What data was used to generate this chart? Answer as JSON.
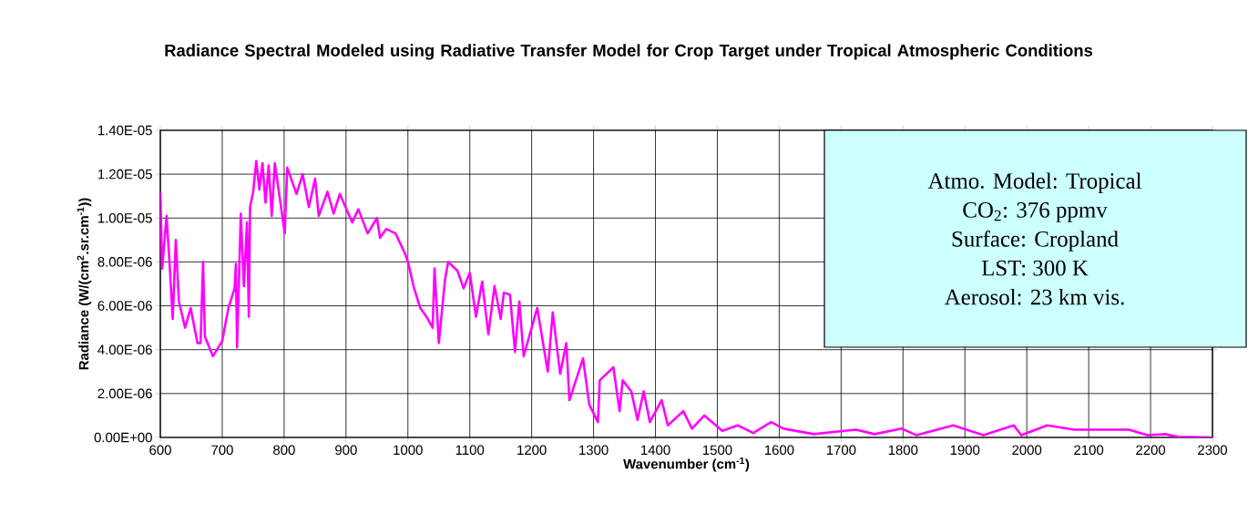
{
  "chart_data": {
    "type": "line",
    "title": "Radiance Spectral Modeled using Radiative Transfer Model for Crop Target under Tropical Atmospheric Conditions",
    "xlabel": "Wavenumber (cm$^{-1}$)",
    "ylabel": "Radiance (W/(cm$^{2}$.sr.cm$^{-1}$))",
    "annotations": [
      "Atmo. Model: Tropical",
      "CO$_{2}$: 376 ppmv",
      "Surface: Cropland",
      "LST: 300 K",
      "Aerosol: 23 km vis."
    ],
    "xlim": [
      600,
      2300
    ],
    "xticks": [
      600,
      700,
      800,
      900,
      1000,
      1100,
      1200,
      1300,
      1400,
      1500,
      1600,
      1700,
      1800,
      1900,
      2000,
      2100,
      2200,
      2300
    ],
    "ylim": [
      0,
      1.4e-05
    ],
    "yticks": [
      {
        "value": 0,
        "label": "0.00E+00"
      },
      {
        "value": 2e-06,
        "label": "2.00E-06"
      },
      {
        "value": 4e-06,
        "label": "4.00E-06"
      },
      {
        "value": 6e-06,
        "label": "6.00E-06"
      },
      {
        "value": 8e-06,
        "label": "8.00E-06"
      },
      {
        "value": 1e-05,
        "label": "1.00E-05"
      },
      {
        "value": 1.2e-05,
        "label": "1.20E-05"
      },
      {
        "value": 1.4e-05,
        "label": "1.40E-05"
      }
    ],
    "grid": true,
    "marker": "none",
    "line_style": "solid",
    "series": [
      {
        "color": "#ff00ff",
        "x": [
          600,
          603,
          610,
          615,
          620,
          625,
          630,
          640,
          649,
          660,
          665,
          669,
          672,
          685,
          700,
          710,
          720,
          722,
          724,
          730,
          735,
          740,
          743,
          745,
          750,
          755,
          760,
          765,
          770,
          775,
          780,
          785,
          801,
          805,
          820,
          830,
          840,
          850,
          856,
          870,
          880,
          890,
          910,
          920,
          935,
          950,
          955,
          965,
          980,
          995,
          1000,
          1010,
          1020,
          1030,
          1040,
          1043,
          1050,
          1060,
          1065,
          1080,
          1090,
          1100,
          1110,
          1120,
          1130,
          1140,
          1150,
          1155,
          1165,
          1173,
          1180,
          1187,
          1209,
          1226,
          1234,
          1246,
          1256,
          1261,
          1283,
          1293,
          1307,
          1310,
          1332,
          1342,
          1347,
          1361,
          1371,
          1381,
          1391,
          1410,
          1420,
          1445,
          1459,
          1479,
          1508,
          1533,
          1558,
          1587,
          1607,
          1656,
          1705,
          1724,
          1754,
          1798,
          1822,
          1881,
          1930,
          1979,
          1991,
          2033,
          2077,
          2165,
          2195,
          2224,
          2244,
          2300
        ],
        "values": [
          1.12e-05,
          7.7e-06,
          1.01e-05,
          7.9e-06,
          5.4e-06,
          9e-06,
          6.2e-06,
          5e-06,
          5.9e-06,
          4.3e-06,
          4.3e-06,
          8e-06,
          4.6e-06,
          3.7e-06,
          4.4e-06,
          5.9e-06,
          6.8e-06,
          7.9e-06,
          4.1e-06,
          1.02e-05,
          6.9e-06,
          9.8e-06,
          5.5e-06,
          1.05e-05,
          1.12e-05,
          1.26e-05,
          1.13e-05,
          1.25e-05,
          1.07e-05,
          1.24e-05,
          1.01e-05,
          1.25e-05,
          9.3e-06,
          1.23e-05,
          1.11e-05,
          1.2e-05,
          1.05e-05,
          1.18e-05,
          1.01e-05,
          1.12e-05,
          1.02e-05,
          1.11e-05,
          9.8e-06,
          1.04e-05,
          9.3e-06,
          1e-05,
          9.1e-06,
          9.5e-06,
          9.3e-06,
          8.4e-06,
          8e-06,
          6.8e-06,
          5.9e-06,
          5.5e-06,
          5e-06,
          7.7e-06,
          4.3e-06,
          7.2e-06,
          8e-06,
          7.6e-06,
          6.8e-06,
          7.5e-06,
          5.5e-06,
          7.1e-06,
          4.7e-06,
          6.9e-06,
          5.4e-06,
          6.6e-06,
          6.5e-06,
          3.9e-06,
          6.2e-06,
          3.7e-06,
          5.9e-06,
          3e-06,
          5.7e-06,
          2.9e-06,
          4.3e-06,
          1.7e-06,
          3.6e-06,
          1.5e-06,
          7e-07,
          2.6e-06,
          3.2e-06,
          1.2e-06,
          2.6e-06,
          2.1e-06,
          8e-07,
          2.1e-06,
          7e-07,
          1.7e-06,
          5.5e-07,
          1.2e-06,
          4e-07,
          1e-06,
          3e-07,
          5.5e-07,
          2e-07,
          7e-07,
          4e-07,
          1.5e-07,
          3e-07,
          3.5e-07,
          1.5e-07,
          4e-07,
          1e-07,
          5.5e-07,
          1e-07,
          5.5e-07,
          1e-07,
          5.5e-07,
          3.5e-07,
          3.5e-07,
          1e-07,
          1.5e-07,
          3e-08,
          0
        ]
      }
    ]
  }
}
